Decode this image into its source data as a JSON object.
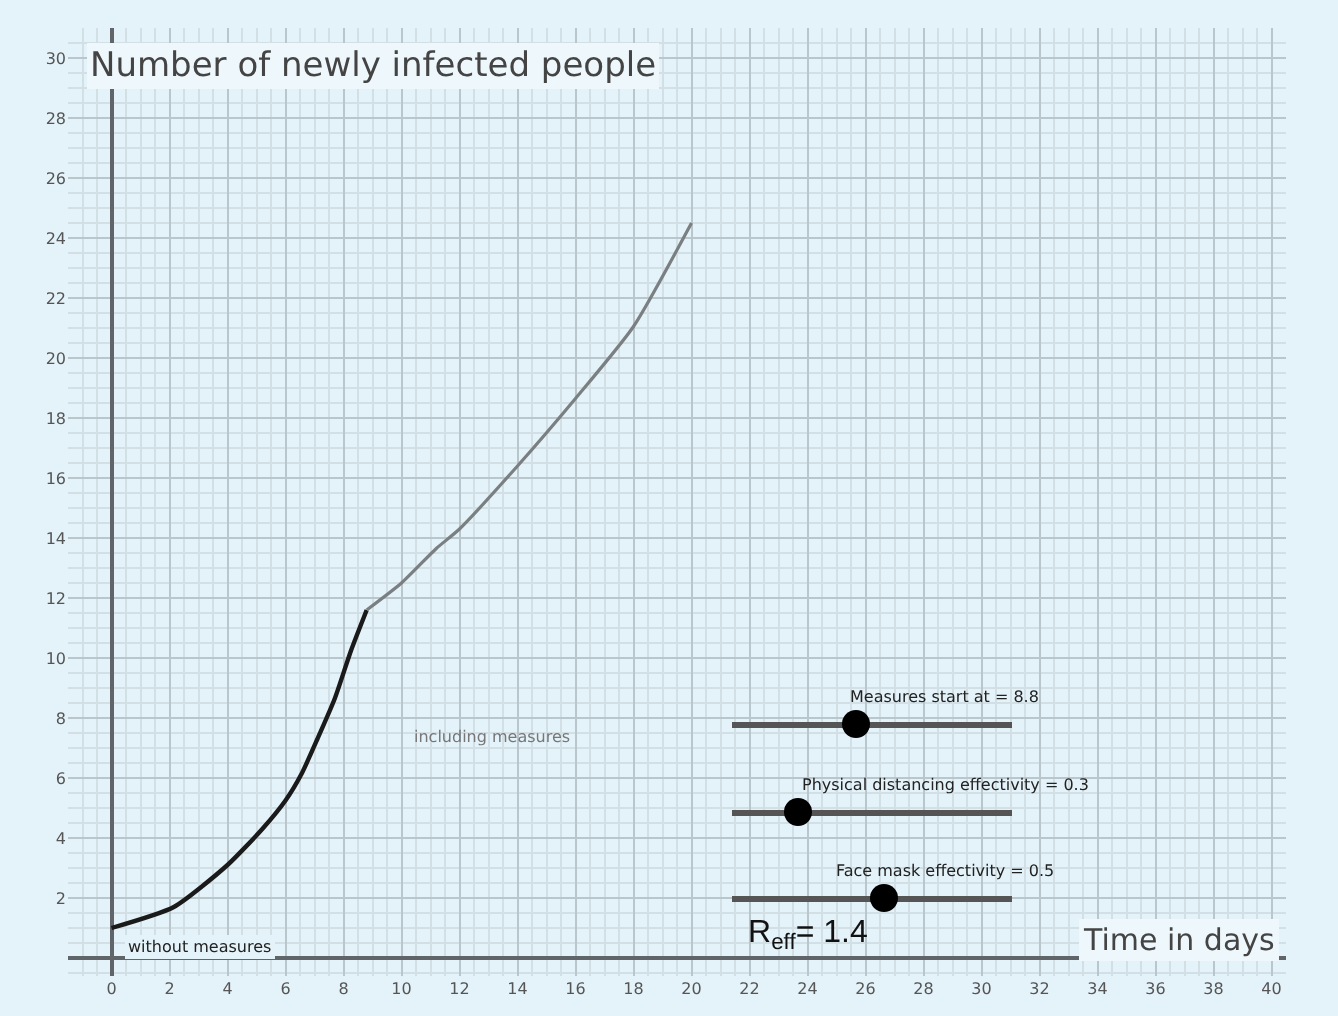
{
  "chart_data": {
    "type": "line",
    "title": "Number of newly infected people",
    "xlabel": "Time in days",
    "series": [
      {
        "name": "without measures",
        "color": "#1a1a1a",
        "x": [
          0,
          2.15,
          4,
          5.2,
          6,
          6.56,
          7.1,
          7.7,
          8.26,
          8.8
        ],
        "values": [
          1,
          1.7,
          3.1,
          4.3,
          5.25,
          6.15,
          7.3,
          8.65,
          10.25,
          11.6
        ]
      },
      {
        "name": "including measures",
        "color": "#7a7f82",
        "x": [
          8.8,
          10,
          11.2,
          12,
          14,
          16,
          18,
          20
        ],
        "values": [
          11.6,
          12.5,
          13.65,
          14.3,
          16.4,
          18.65,
          21.05,
          24.5
        ]
      }
    ],
    "annotations": [
      "Measures start at = 8.8",
      "Physical distancing effectivity = 0.3",
      "Face mask effectivity = 0.5",
      "R$_{eff}$= 1.4"
    ],
    "xlim": [
      -1.5,
      40.5
    ],
    "ylim": [
      -0.6,
      31
    ],
    "xticks": [
      0,
      2,
      4,
      6,
      8,
      10,
      12,
      14,
      16,
      18,
      20,
      22,
      24,
      26,
      28,
      30,
      32,
      34,
      36,
      38,
      40
    ],
    "yticks": [
      2,
      4,
      6,
      8,
      10,
      12,
      14,
      16,
      18,
      20,
      22,
      24,
      26,
      28,
      30
    ],
    "grid": true,
    "legend": false,
    "marker": "none",
    "line_style": "solid"
  }
}
